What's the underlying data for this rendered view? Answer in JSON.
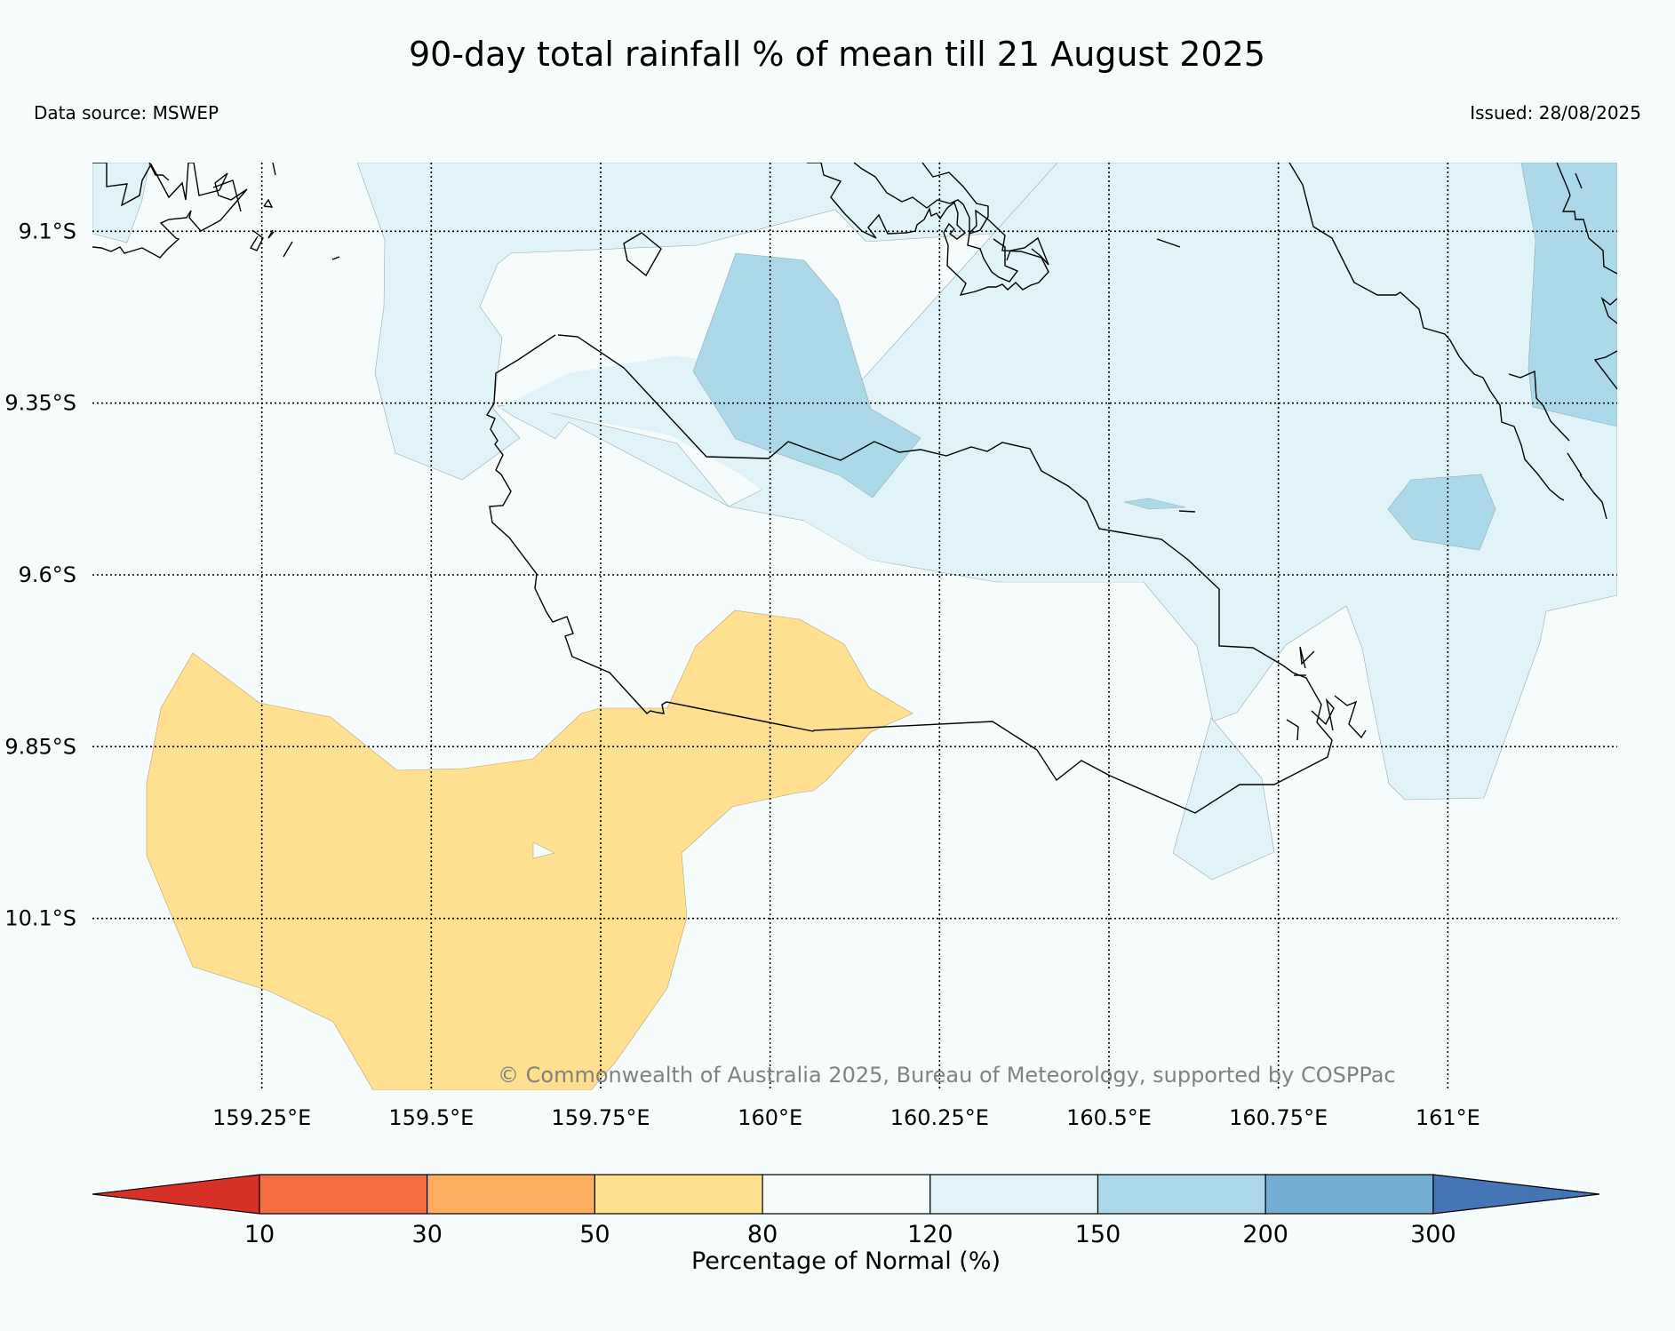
{
  "title": "90-day total rainfall % of mean till 21 August 2025",
  "data_source": "Data source: MSWEP",
  "issued": "Issued: 28/08/2025",
  "copyright": "© Commonwealth of Australia 2025, Bureau of Meteorology, supported by COSPPac",
  "map": {
    "lon_range": [
      159.0,
      161.25
    ],
    "lat_range": [
      -10.35,
      -9.0
    ],
    "lon_ticks": [
      {
        "value": 159.25,
        "label": "159.25°E"
      },
      {
        "value": 159.5,
        "label": "159.5°E"
      },
      {
        "value": 159.75,
        "label": "159.75°E"
      },
      {
        "value": 160.0,
        "label": "160°E"
      },
      {
        "value": 160.25,
        "label": "160.25°E"
      },
      {
        "value": 160.5,
        "label": "160.5°E"
      },
      {
        "value": 160.75,
        "label": "160.75°E"
      },
      {
        "value": 161.0,
        "label": "161°E"
      }
    ],
    "lat_ticks": [
      {
        "value": -9.1,
        "label": "9.1°S"
      },
      {
        "value": -9.35,
        "label": "9.35°S"
      },
      {
        "value": -9.6,
        "label": "9.6°S"
      },
      {
        "value": -9.85,
        "label": "9.85°S"
      },
      {
        "value": -10.1,
        "label": "10.1°S"
      }
    ],
    "background_category": "80-120",
    "regions": [
      {
        "category": "120-150",
        "name": "wet-region-north"
      },
      {
        "category": "150-200",
        "name": "very-wet-region-north"
      },
      {
        "category": "150-200",
        "name": "very-wet-region-east"
      },
      {
        "category": "150-200",
        "name": "very-wet-region-northeast"
      },
      {
        "category": "120-150",
        "name": "wet-region-south"
      },
      {
        "category": "50-80",
        "name": "dry-region-southwest"
      }
    ]
  },
  "colorbar": {
    "label": "Percentage of Normal (%)",
    "ticks": [
      "10",
      "30",
      "50",
      "80",
      "120",
      "150",
      "200",
      "300"
    ],
    "colors": {
      "below_10": "#d73027",
      "10-30": "#f46d43",
      "30-50": "#fdae61",
      "50-80": "#fee090",
      "80-120": "#f6fcfc",
      "120-150": "#e0f3f8",
      "150-200": "#abd9e9",
      "200-300": "#74add1",
      "above_300": "#4575b4"
    }
  }
}
